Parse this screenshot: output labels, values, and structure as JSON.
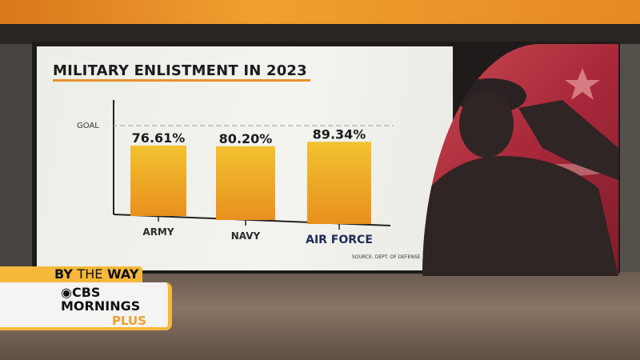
{
  "chart_data": {
    "type": "bar",
    "title": "MILITARY ENLISTMENT IN 2023",
    "categories": [
      "ARMY",
      "NAVY",
      "AIR FORCE"
    ],
    "values": [
      76.61,
      80.2,
      89.34
    ],
    "data_labels": [
      "76.61%",
      "80.20%",
      "89.34%"
    ],
    "reference_line": {
      "label": "GOAL",
      "value": 100
    },
    "ylim": [
      0,
      100
    ],
    "grid": false,
    "source": "SOURCE: DEPT. OF DEFENSE",
    "colors": {
      "bar_top": "#f2c230",
      "bar_bottom": "#e8901e",
      "category_last": "#1e2a5a"
    }
  },
  "lower_third": {
    "show": "BY",
    "show_mid": "THE",
    "show_end": "WAY",
    "brand_line1": "CBS",
    "brand_line2": "MORNINGS",
    "brand_line3": "PLUS"
  }
}
